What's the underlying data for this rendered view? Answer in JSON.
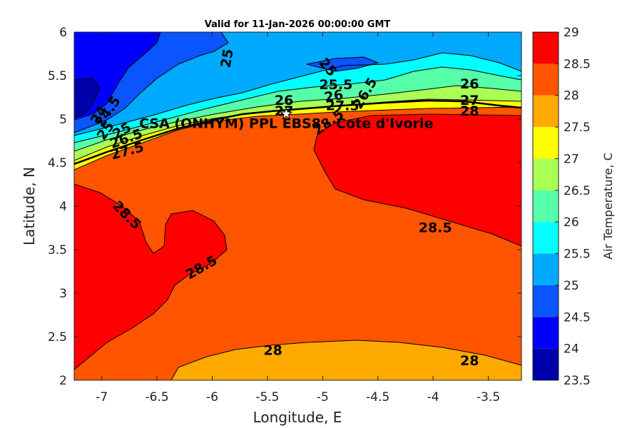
{
  "chart_data": {
    "type": "contour",
    "title": "Valid for 11-Jan-2026 00:00:00 GMT",
    "xlabel": "Longitude, E",
    "ylabel": "Latitude, N",
    "xlim": [
      -7.25,
      -3.2
    ],
    "ylim": [
      2,
      6
    ],
    "xticks": [
      -7,
      -6.5,
      -6,
      -5.5,
      -5,
      -4.5,
      -4,
      -3.5
    ],
    "xtick_labels": [
      "-7",
      "-6.5",
      "-6",
      "-5.5",
      "-5",
      "-4.5",
      "-4",
      "-3.5"
    ],
    "yticks": [
      2,
      2.5,
      3,
      3.5,
      4,
      4.5,
      5,
      5.5,
      6
    ],
    "ytick_labels": [
      "2",
      "2.5",
      "3",
      "3.5",
      "4",
      "4.5",
      "5",
      "5.5",
      "6"
    ],
    "colorbar": {
      "label": "Air Temperature, C",
      "min": 23.5,
      "max": 29,
      "ticks": [
        23.5,
        24,
        24.5,
        25,
        25.5,
        26,
        26.5,
        27,
        27.5,
        28,
        28.5,
        29
      ],
      "tick_labels": [
        "23.5",
        "24",
        "24.5",
        "25",
        "25.5",
        "26",
        "26.5",
        "27",
        "27.5",
        "28",
        "28.5",
        "29"
      ],
      "level_colors": [
        "#0000aa",
        "#0000ff",
        "#0a55ff",
        "#00aaff",
        "#00ffff",
        "#55ffaa",
        "#aaff55",
        "#ffff00",
        "#ffaa00",
        "#ff5500",
        "#ff0000"
      ]
    },
    "site": {
      "label": "CSA (ONHYM) PPL EBS8 - Cote d'Ivorie",
      "lon": -5.33,
      "lat": 5.06
    },
    "contour_labels": [
      {
        "text": "25",
        "lon": -5.87,
        "lat": 5.7,
        "angle": -80
      },
      {
        "text": "25",
        "lon": -4.95,
        "lat": 5.6,
        "angle": 50
      },
      {
        "text": "25.5",
        "lon": -4.88,
        "lat": 5.4,
        "angle": 0
      },
      {
        "text": "26",
        "lon": -5.35,
        "lat": 5.22,
        "angle": 0
      },
      {
        "text": "26",
        "lon": -4.9,
        "lat": 5.27,
        "angle": -10
      },
      {
        "text": "27",
        "lon": -5.35,
        "lat": 5.1,
        "angle": 0
      },
      {
        "text": "27.5",
        "lon": -4.82,
        "lat": 5.16,
        "angle": 0
      },
      {
        "text": "26.5",
        "lon": -4.62,
        "lat": 5.3,
        "angle": -60
      },
      {
        "text": "28.5",
        "lon": -4.95,
        "lat": 4.97,
        "angle": -35
      },
      {
        "text": "24",
        "lon": -7.03,
        "lat": 5.05,
        "angle": -60
      },
      {
        "text": "24.5",
        "lon": -6.95,
        "lat": 5.09,
        "angle": -55
      },
      {
        "text": "25",
        "lon": -6.97,
        "lat": 4.87,
        "angle": -55
      },
      {
        "text": "25",
        "lon": -6.82,
        "lat": 4.87,
        "angle": -30
      },
      {
        "text": "26.5",
        "lon": -6.78,
        "lat": 4.78,
        "angle": -20
      },
      {
        "text": "27.5",
        "lon": -6.77,
        "lat": 4.64,
        "angle": -15
      },
      {
        "text": "26",
        "lon": -3.67,
        "lat": 5.41,
        "angle": 0
      },
      {
        "text": "27",
        "lon": -3.67,
        "lat": 5.22,
        "angle": 0
      },
      {
        "text": "28",
        "lon": -3.67,
        "lat": 5.1,
        "angle": 0
      },
      {
        "text": "28.5",
        "lon": -6.77,
        "lat": 3.9,
        "angle": 45
      },
      {
        "text": "28.5",
        "lon": -6.1,
        "lat": 3.3,
        "angle": -30
      },
      {
        "text": "28.5",
        "lon": -3.98,
        "lat": 3.76,
        "angle": 0
      },
      {
        "text": "28",
        "lon": -5.45,
        "lat": 2.35,
        "angle": 0
      },
      {
        "text": "28",
        "lon": -3.67,
        "lat": 2.23,
        "angle": 0
      }
    ]
  }
}
